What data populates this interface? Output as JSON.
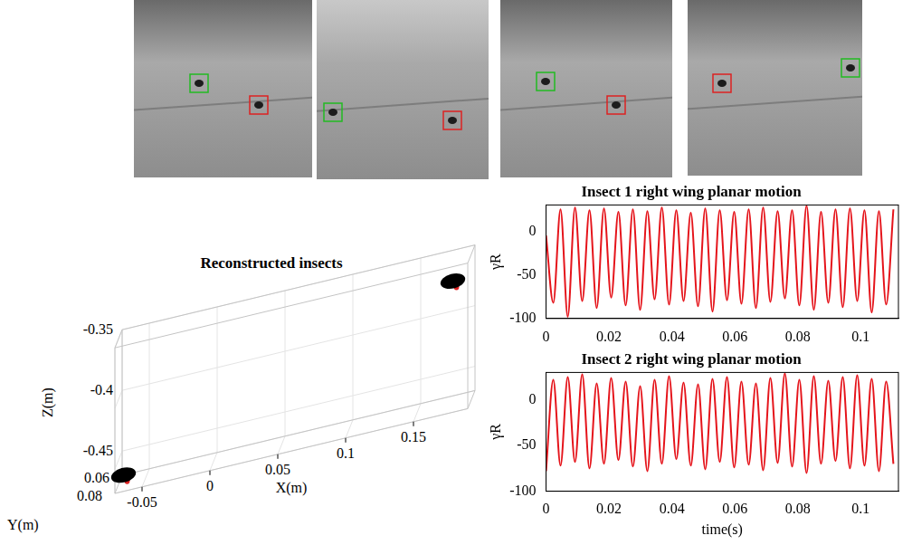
{
  "chart_data": [
    {
      "type": "scatter3d",
      "title": "Reconstructed insects",
      "x_label": "X(m)",
      "y_label": "Y(m)",
      "z_label": "Z(m)",
      "xlim": [
        -0.07,
        0.19
      ],
      "ylim": [
        0.06,
        0.08
      ],
      "zlim": [
        -0.47,
        -0.35
      ],
      "xticks": [
        -0.05,
        0,
        0.05,
        0.1,
        0.15
      ],
      "yticks": [
        0.06,
        0.08
      ],
      "zticks": [
        -0.35,
        -0.4,
        -0.45
      ],
      "points": [
        [
          -0.065,
          0.075,
          -0.46
        ],
        [
          0.175,
          0.065,
          -0.372
        ]
      ],
      "color": "#000000",
      "grid": true
    },
    {
      "type": "line",
      "title": "Insect 1 right wing planar motion",
      "y_label": "γR",
      "x": [
        0,
        0.0023,
        0.0046,
        0.0069,
        0.0092,
        0.0115,
        0.0138,
        0.0161,
        0.0184,
        0.0207,
        0.023,
        0.0253,
        0.0276,
        0.0299,
        0.0322,
        0.0345,
        0.0368,
        0.0391,
        0.0414,
        0.0437,
        0.046,
        0.0483,
        0.0506,
        0.0529,
        0.0552,
        0.0575,
        0.0598,
        0.0621,
        0.0644,
        0.0667,
        0.069,
        0.0713,
        0.0736,
        0.0759,
        0.0782,
        0.0805,
        0.0828,
        0.0851,
        0.0874,
        0.0897,
        0.092,
        0.0943,
        0.0966,
        0.0989,
        0.1012,
        0.1035,
        0.1058,
        0.1081,
        0.1104
      ],
      "series": [
        {
          "color": "#e5141b",
          "values": [
            -5,
            -82,
            25,
            -98,
            27,
            -80,
            24,
            -88,
            26,
            -76,
            22,
            -85,
            25,
            -90,
            23,
            -78,
            27,
            -84,
            24,
            -80,
            21,
            -86,
            26,
            -92,
            24,
            -79,
            22,
            -83,
            25,
            -88,
            27,
            -81,
            23,
            -77,
            24,
            -85,
            29,
            -90,
            22,
            -82,
            25,
            -87,
            26,
            -80,
            24,
            -93,
            23,
            -84,
            25
          ]
        }
      ],
      "xlim": [
        0,
        0.112
      ],
      "xticks": [
        0,
        0.02,
        0.04,
        0.06,
        0.08,
        0.1
      ],
      "ylim": [
        -100,
        30
      ],
      "yticks": [
        -100,
        -50,
        0
      ],
      "grid": false
    },
    {
      "type": "line",
      "title": "Insect 2 right wing planar motion",
      "y_label": "γR",
      "x_label": "time(s)",
      "x": [
        0,
        0.0023,
        0.0046,
        0.0069,
        0.0092,
        0.0115,
        0.0138,
        0.0161,
        0.0184,
        0.0207,
        0.023,
        0.0253,
        0.0276,
        0.0299,
        0.0322,
        0.0345,
        0.0368,
        0.0391,
        0.0414,
        0.0437,
        0.046,
        0.0483,
        0.0506,
        0.0529,
        0.0552,
        0.0575,
        0.0598,
        0.0621,
        0.0644,
        0.0667,
        0.069,
        0.0713,
        0.0736,
        0.0759,
        0.0782,
        0.0805,
        0.0828,
        0.0851,
        0.0874,
        0.0897,
        0.092,
        0.0943,
        0.0966,
        0.0989,
        0.1012,
        0.1035,
        0.1058,
        0.1081,
        0.1104
      ],
      "series": [
        {
          "color": "#e5141b",
          "values": [
            -78,
            22,
            -72,
            25,
            -68,
            28,
            -75,
            18,
            -70,
            24,
            -66,
            20,
            -73,
            15,
            -78,
            22,
            -70,
            26,
            -65,
            19,
            -72,
            17,
            -76,
            23,
            -68,
            25,
            -74,
            20,
            -71,
            18,
            -77,
            24,
            -69,
            29,
            -73,
            22,
            -80,
            26,
            -70,
            21,
            -67,
            25,
            -75,
            27,
            -72,
            23,
            -78,
            20,
            -70
          ]
        }
      ],
      "xlim": [
        0,
        0.112
      ],
      "xticks": [
        0,
        0.02,
        0.04,
        0.06,
        0.08,
        0.1
      ],
      "ylim": [
        -100,
        30
      ],
      "yticks": [
        -100,
        -50,
        0
      ],
      "grid": false
    }
  ]
}
